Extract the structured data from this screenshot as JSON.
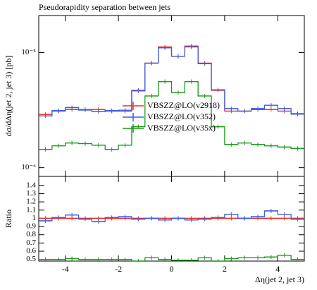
{
  "chart_data": [
    {
      "type": "histogram",
      "title": "Pseudorapidity separation between jets",
      "ylabel": "dσ/dΔη(jet 2, jet 3) [pb]",
      "log": true,
      "bins": [
        -5,
        -4.5,
        -4,
        -3.5,
        -3,
        -2.5,
        -2,
        -1.5,
        -1,
        -0.5,
        0,
        0.5,
        1,
        1.5,
        2,
        2.5,
        3,
        3.5,
        4,
        4.5,
        5
      ],
      "ylim": [
        8.4e-07,
        2.1e-05
      ],
      "yticks": [
        {
          "value": 1e-05,
          "label": "10⁻⁵"
        },
        {
          "value": 1e-06,
          "label": "10⁻⁶"
        }
      ],
      "legend": "center",
      "series": [
        {
          "name": "VBSZZ@LO(v2918)",
          "color": "#e8302a",
          "values": [
            2.9e-06,
            3.1e-06,
            3.2e-06,
            3.2e-06,
            3.2e-06,
            3.1e-06,
            3.1e-06,
            4.7e-06,
            8.1e-06,
            1.12e-05,
            9.3e-06,
            1.14e-05,
            8.1e-06,
            4.7e-06,
            3.1e-06,
            3.1e-06,
            3.2e-06,
            3.2e-06,
            3.1e-06,
            2.95e-06
          ]
        },
        {
          "name": "VBSZZ@LO(v352)",
          "color": "#3a5ee8",
          "values": [
            2.82e-06,
            3.13e-06,
            3.33e-06,
            3.17e-06,
            3.07e-06,
            3.13e-06,
            3.16e-06,
            4.65e-06,
            8.1e-06,
            1.1e-05,
            9.3e-06,
            1.12e-05,
            8e-06,
            4.75e-06,
            3.26e-06,
            3.1e-06,
            3.26e-06,
            3.49e-06,
            3.26e-06,
            2.92e-06
          ]
        },
        {
          "name": "VBSZZ@LO(v35x)",
          "color": "#1a9a1a",
          "values": [
            1.44e-06,
            1.55e-06,
            1.64e-06,
            1.62e-06,
            1.57e-06,
            1.44e-06,
            1.57e-06,
            2.27e-06,
            4.2e-06,
            5.6e-06,
            4.5e-06,
            5.6e-06,
            4.2e-06,
            2.27e-06,
            1.59e-06,
            1.64e-06,
            1.59e-06,
            1.55e-06,
            1.51e-06,
            1.47e-06
          ]
        }
      ]
    },
    {
      "type": "histogram",
      "ylabel": "Ratio",
      "xlabel": "Δη(jet 2, jet 3)",
      "bins": [
        -5,
        -4.5,
        -4,
        -3.5,
        -3,
        -2.5,
        -2,
        -1.5,
        -1,
        -0.5,
        0,
        0.5,
        1,
        1.5,
        2,
        2.5,
        3,
        3.5,
        4,
        4.5,
        5
      ],
      "xlim": [
        -5,
        5
      ],
      "xticks": [
        -4,
        -2,
        0,
        2,
        4
      ],
      "ylim": [
        0.48,
        1.51
      ],
      "yticks": [
        0.5,
        0.6,
        0.7,
        0.8,
        0.9,
        1,
        1.1,
        1.2,
        1.3,
        1.4
      ],
      "series": [
        {
          "color": "#e8302a",
          "values": [
            1,
            1,
            1,
            1,
            1,
            1,
            1,
            1,
            1,
            1,
            1,
            1,
            1,
            1,
            1,
            1,
            1,
            1,
            1,
            1
          ]
        },
        {
          "color": "#3a5ee8",
          "values": [
            0.97,
            1.01,
            1.04,
            0.99,
            0.96,
            1.01,
            1.02,
            0.99,
            1.0,
            0.98,
            1.0,
            0.98,
            0.99,
            1.01,
            1.05,
            1.0,
            1.02,
            1.09,
            1.05,
            0.99
          ]
        },
        {
          "color": "#1a9a1a",
          "values": [
            0.5,
            0.5,
            0.51,
            0.5,
            0.5,
            0.5,
            0.5,
            0.48,
            0.52,
            0.5,
            0.49,
            0.49,
            0.52,
            0.48,
            0.51,
            0.52,
            0.52,
            0.53,
            0.55,
            0.5
          ]
        }
      ]
    }
  ]
}
